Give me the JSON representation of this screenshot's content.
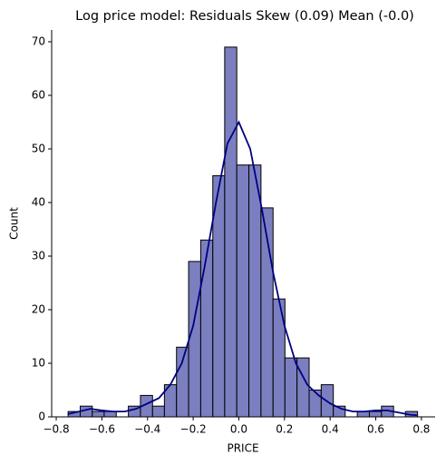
{
  "chart_data": {
    "type": "histogram",
    "title": "Log price model: Residuals Skew (0.09) Mean (-0.0)",
    "x_label": "PRICE",
    "y_label": "Count",
    "bins": [
      -0.748,
      -0.695,
      -0.642,
      -0.59,
      -0.537,
      -0.484,
      -0.431,
      -0.378,
      -0.326,
      -0.273,
      -0.22,
      -0.167,
      -0.114,
      -0.062,
      -0.009,
      0.044,
      0.097,
      0.15,
      0.202,
      0.255,
      0.308,
      0.361,
      0.414,
      0.466,
      0.519,
      0.572,
      0.625,
      0.678,
      0.73,
      0.783
    ],
    "values": [
      1,
      2,
      1,
      1,
      0,
      2,
      4,
      2,
      6,
      13,
      29,
      33,
      45,
      69,
      47,
      47,
      39,
      22,
      11,
      11,
      5,
      6,
      2,
      0,
      1,
      1,
      2,
      0,
      1
    ],
    "color": "#7b7fbf",
    "edge_color": "#000000",
    "kde": {
      "color": "#000080",
      "x": [
        -0.75,
        -0.7,
        -0.65,
        -0.6,
        -0.55,
        -0.5,
        -0.45,
        -0.4,
        -0.35,
        -0.3,
        -0.25,
        -0.2,
        -0.15,
        -0.1,
        -0.05,
        0,
        0.05,
        0.1,
        0.15,
        0.2,
        0.25,
        0.3,
        0.35,
        0.4,
        0.45,
        0.5,
        0.55,
        0.6,
        0.65,
        0.7,
        0.75,
        0.78
      ],
      "values": [
        0.5,
        1,
        1.5,
        1.2,
        1,
        1,
        1.5,
        2.5,
        3.5,
        6,
        10,
        17,
        28,
        40,
        51,
        55,
        50,
        39,
        27,
        17,
        10,
        6,
        4,
        2.5,
        1.5,
        1,
        1,
        1.2,
        1.2,
        0.8,
        0.4,
        0.3
      ]
    },
    "xlim": [
      -0.82,
      0.86
    ],
    "ylim": [
      0,
      72.2
    ],
    "xticks": [
      {
        "value": -0.8,
        "label": "−0.8"
      },
      {
        "value": -0.6,
        "label": "−0.6"
      },
      {
        "value": -0.4,
        "label": "−0.4"
      },
      {
        "value": -0.2,
        "label": "−0.2"
      },
      {
        "value": 0,
        "label": "0.0"
      },
      0.2,
      0.4,
      0.6,
      0.8
    ],
    "yticks": [
      0,
      10,
      20,
      30,
      40,
      50,
      60,
      70
    ]
  }
}
